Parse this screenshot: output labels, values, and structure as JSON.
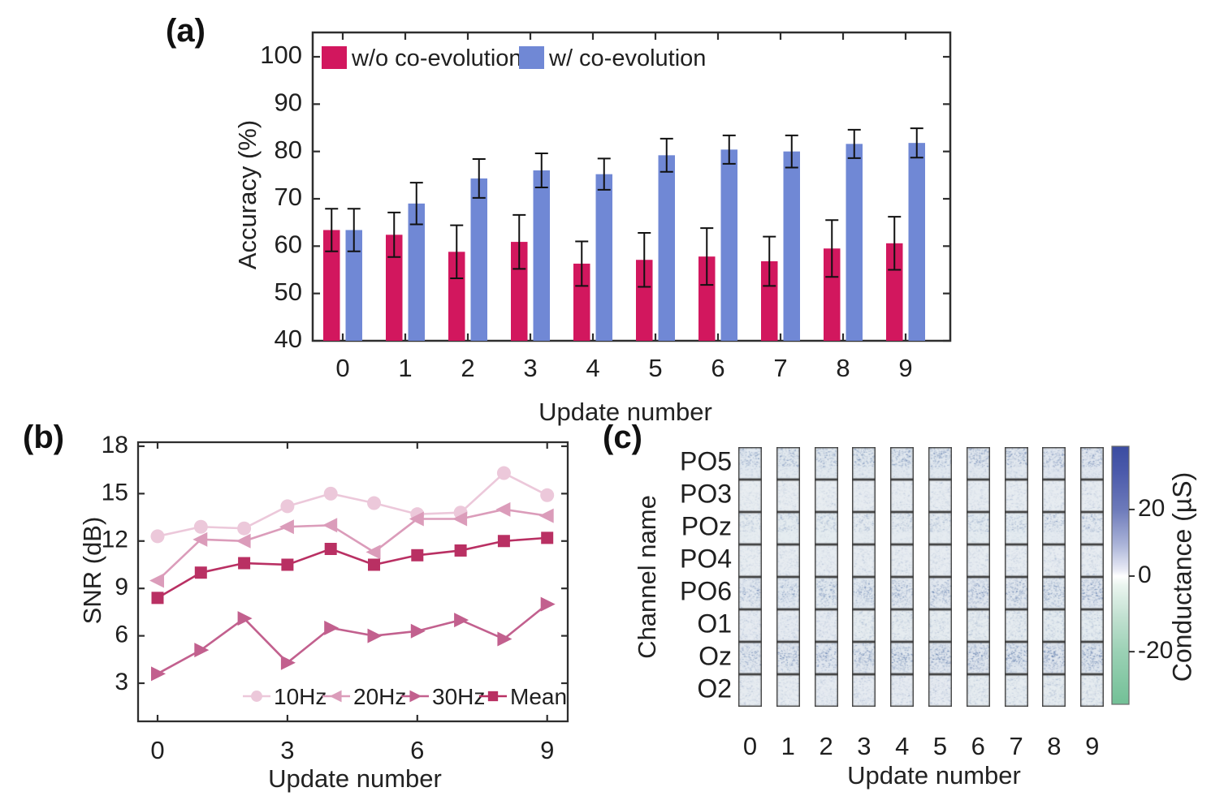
{
  "figure": {
    "panel_labels": [
      "(a)",
      "(b)",
      "(c)"
    ]
  },
  "chart_data": [
    {
      "id": "a",
      "panel_label": "(a)",
      "type": "bar",
      "title": "",
      "xlabel": "Update number",
      "ylabel": "Accuracy (%)",
      "categories": [
        "0",
        "1",
        "2",
        "3",
        "4",
        "5",
        "6",
        "7",
        "8",
        "9"
      ],
      "yticks": [
        40,
        50,
        60,
        70,
        80,
        90,
        100
      ],
      "ylim": [
        40,
        105
      ],
      "grid": false,
      "legend_position": "top-left-inside",
      "series": [
        {
          "name": "w/o co-evolution",
          "color": "#d2175e",
          "values": [
            63.4,
            62.4,
            58.8,
            60.9,
            56.3,
            57.1,
            57.8,
            56.8,
            59.5,
            60.6
          ],
          "errors": [
            4.5,
            4.7,
            5.6,
            5.7,
            4.7,
            5.7,
            6.0,
            5.2,
            6.0,
            5.6
          ]
        },
        {
          "name": "w/  co-evolution",
          "color": "#7088d5",
          "values": [
            63.4,
            69.0,
            74.3,
            76.0,
            75.2,
            79.2,
            80.4,
            80.0,
            81.6,
            81.8
          ],
          "errors": [
            4.5,
            4.4,
            4.1,
            3.6,
            3.3,
            3.5,
            3.0,
            3.4,
            3.0,
            3.1
          ]
        }
      ]
    },
    {
      "id": "b",
      "panel_label": "(b)",
      "type": "line",
      "title": "",
      "xlabel": "Update number",
      "ylabel": "SNR (dB)",
      "x": [
        0,
        1,
        2,
        3,
        4,
        5,
        6,
        7,
        8,
        9
      ],
      "xticks": [
        0,
        3,
        6,
        9
      ],
      "yticks": [
        3,
        6,
        9,
        12,
        15,
        18
      ],
      "ylim": [
        0.6,
        18.3
      ],
      "grid": false,
      "legend_position": "bottom-inside",
      "series": [
        {
          "name": "10Hz",
          "marker": "circle",
          "color": "#ecc8da",
          "values": [
            12.3,
            12.9,
            12.8,
            14.2,
            15.0,
            14.4,
            13.7,
            13.8,
            16.3,
            14.9
          ]
        },
        {
          "name": "20Hz",
          "marker": "triangle-left",
          "color": "#db9cba",
          "values": [
            9.5,
            12.1,
            12.0,
            12.9,
            13.0,
            11.3,
            13.4,
            13.4,
            14.0,
            13.6
          ]
        },
        {
          "name": "30Hz",
          "marker": "triangle-right",
          "color": "#c2608e",
          "values": [
            3.6,
            5.1,
            7.1,
            4.3,
            6.5,
            6.0,
            6.3,
            7.0,
            5.8,
            8.0
          ]
        },
        {
          "name": "Mean",
          "marker": "square",
          "color": "#b93063",
          "values": [
            8.4,
            10.0,
            10.6,
            10.5,
            11.5,
            10.5,
            11.1,
            11.4,
            12.0,
            12.2
          ]
        }
      ]
    },
    {
      "id": "c",
      "panel_label": "(c)",
      "type": "heatmap",
      "title": "",
      "xlabel": "Update number",
      "ylabel": "Channel name",
      "columns": [
        "0",
        "1",
        "2",
        "3",
        "4",
        "5",
        "6",
        "7",
        "8",
        "9"
      ],
      "rows": [
        {
          "label": "PO5",
          "base": 0.4,
          "gain": 0.1,
          "profile": "top"
        },
        {
          "label": "PO3",
          "base": 0.13,
          "gain": 0.04,
          "profile": "flat"
        },
        {
          "label": "POz",
          "base": 0.24,
          "gain": 0.08,
          "profile": "top"
        },
        {
          "label": "PO4",
          "base": 0.14,
          "gain": 0.05,
          "profile": "flat"
        },
        {
          "label": "PO6",
          "base": 0.38,
          "gain": 0.18,
          "profile": "mid"
        },
        {
          "label": "O1",
          "base": 0.2,
          "gain": 0.05,
          "profile": "flat"
        },
        {
          "label": "Oz",
          "base": 0.46,
          "gain": 0.18,
          "profile": "mid"
        },
        {
          "label": "O2",
          "base": 0.18,
          "gain": 0.06,
          "profile": "flat"
        }
      ],
      "colorbar": {
        "label": "Conductance (µS)",
        "ticks": [
          {
            "label": "20",
            "pos": 0.245
          },
          {
            "label": "0",
            "pos": 0.503
          },
          {
            "label": "-20",
            "pos": 0.796
          }
        ],
        "top_color": "#3b4ca1",
        "mid_color": "#ffffff",
        "bottom_color": "#72c096"
      }
    }
  ]
}
